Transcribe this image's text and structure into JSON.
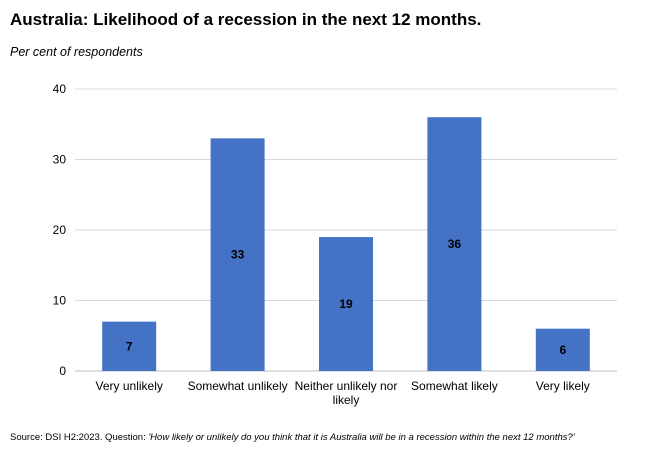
{
  "chart_data": {
    "type": "bar",
    "title": "Australia: Likelihood of a recession in the next 12 months.",
    "subtitle": "Per cent of respondents",
    "categories": [
      [
        "Very unlikely"
      ],
      [
        "Somewhat unlikely"
      ],
      [
        "Neither unlikely nor",
        "likely"
      ],
      [
        "Somewhat likely"
      ],
      [
        "Very likely"
      ]
    ],
    "values": [
      7,
      33,
      19,
      36,
      6
    ],
    "data_labels": [
      "7",
      "33",
      "19",
      "36",
      "6"
    ],
    "ylim": [
      0,
      40
    ],
    "yticks": [
      0,
      10,
      20,
      30,
      40
    ],
    "ytick_labels": [
      "0",
      "10",
      "20",
      "30",
      "40"
    ],
    "grid": true,
    "bar_color": "#4472C4",
    "source_prefix": "Source: DSI H2:2023. Question: ",
    "source_question": "'How likely or unlikely do you think that it is Australia will be in a recession within the next 12 months?'"
  }
}
